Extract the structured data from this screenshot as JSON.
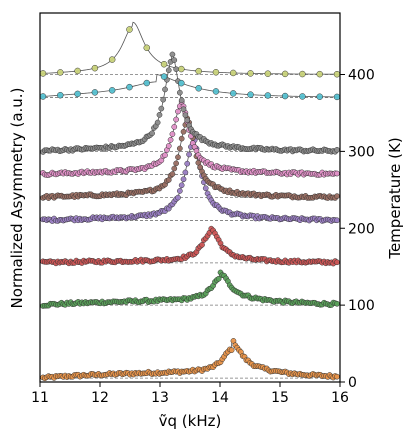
{
  "chart_data": {
    "type": "line",
    "xlabel": "ṽq (kHz)",
    "ylabel_left": "Normalized Asymmetry (a.u.)",
    "ylabel_right": "Temperature (K)",
    "xlim": [
      11,
      16
    ],
    "ylim_right": [
      0,
      480
    ],
    "x_ticks": [
      "11",
      "12",
      "13",
      "14",
      "15",
      "16"
    ],
    "y_ticks_right": [
      "0",
      "100",
      "200",
      "300",
      "400"
    ],
    "grid": false,
    "legend": "none",
    "series": [
      {
        "temperature": 5,
        "baseline": 5,
        "center": 14.2,
        "width": 0.18,
        "amplitude": 30,
        "tail": 18,
        "color": "#e8944a"
      },
      {
        "temperature": 100,
        "baseline": 100,
        "center": 14.0,
        "width": 0.18,
        "amplitude": 28,
        "tail": 14,
        "color": "#5aa05a"
      },
      {
        "temperature": 155,
        "baseline": 155,
        "center": 13.85,
        "width": 0.17,
        "amplitude": 38,
        "tail": 6,
        "color": "#cc5555"
      },
      {
        "temperature": 210,
        "baseline": 210,
        "center": 13.55,
        "width": 0.16,
        "amplitude": 98,
        "tail": 8,
        "color": "#9b7fc4"
      },
      {
        "temperature": 240,
        "baseline": 240,
        "center": 13.45,
        "width": 0.16,
        "amplitude": 95,
        "tail": 8,
        "color": "#9a6f63"
      },
      {
        "temperature": 270,
        "baseline": 270,
        "center": 13.35,
        "width": 0.16,
        "amplitude": 88,
        "tail": 8,
        "color": "#e291c8"
      },
      {
        "temperature": 300,
        "baseline": 300,
        "center": 13.2,
        "width": 0.16,
        "amplitude": 115,
        "tail": 10,
        "color": "#8c8c8c"
      },
      {
        "temperature": 370,
        "baseline": 370,
        "center": 12.95,
        "width": 0.55,
        "amplitude": 15,
        "tail": 15,
        "color": "#55c0d0"
      },
      {
        "temperature": 400,
        "baseline": 400,
        "center": 12.55,
        "width": 0.22,
        "amplitude": 60,
        "tail": 8,
        "color": "#c8d27a"
      }
    ]
  }
}
